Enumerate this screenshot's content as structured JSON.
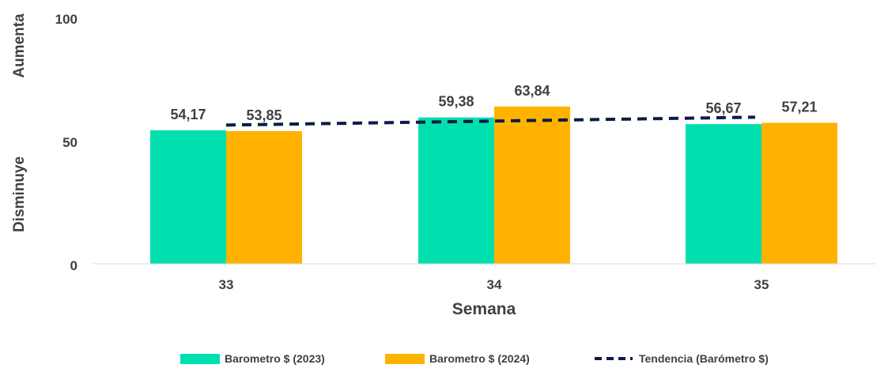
{
  "chart_data": {
    "type": "bar",
    "categories": [
      "33",
      "34",
      "35"
    ],
    "series": [
      {
        "name": "Barometro $ (2023)",
        "values": [
          54.17,
          59.38,
          56.67
        ],
        "labels": [
          "54,17",
          "59,38",
          "56,67"
        ],
        "color": "#00E0AE"
      },
      {
        "name": "Barometro $ (2024)",
        "values": [
          53.85,
          63.84,
          57.21
        ],
        "labels": [
          "53,85",
          "63,84",
          "57,21"
        ],
        "color": "#FFB300"
      }
    ],
    "trend": {
      "name": "Tendencia (Barómetro $)",
      "color": "#0D1A4A",
      "start": 56.3,
      "end": 59.5
    },
    "xlabel": "Semana",
    "ylabel_top": "Aumenta",
    "ylabel_bottom": "Disminuye",
    "ylim": [
      0,
      100
    ],
    "yticks": [
      "0",
      "50",
      "100"
    ],
    "legend_position": "bottom",
    "grid": false
  }
}
